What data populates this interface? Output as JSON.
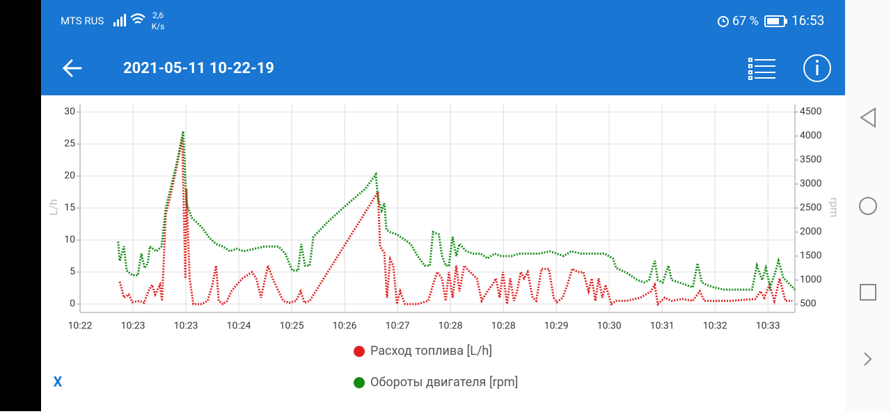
{
  "status_bar": {
    "carrier": "MTS RUS",
    "speed": "2,6",
    "speed_unit": "K/s",
    "battery": "67 %",
    "time": "16:53"
  },
  "header": {
    "title": "2021-05-11 10-22-19"
  },
  "close_label": "X",
  "chart_data": {
    "type": "line",
    "y_label": "L/h",
    "y2_label": "rpm",
    "xlim": [
      0,
      13.51
    ],
    "xticks": [
      {
        "value": 0,
        "label": "10:22"
      },
      {
        "value": 1,
        "label": "10:23"
      },
      {
        "value": 2,
        "label": "10:23"
      },
      {
        "value": 3,
        "label": "10:24"
      },
      {
        "value": 4,
        "label": "10:25"
      },
      {
        "value": 5,
        "label": "10:26"
      },
      {
        "value": 6,
        "label": "10:27"
      },
      {
        "value": 7,
        "label": "10:28"
      },
      {
        "value": 8,
        "label": "10:28"
      },
      {
        "value": 9,
        "label": "10:29"
      },
      {
        "value": 10,
        "label": "10:30"
      },
      {
        "value": 11,
        "label": "10:31"
      },
      {
        "value": 12,
        "label": "10:32"
      },
      {
        "value": 13,
        "label": "10:33"
      }
    ],
    "ylim": [
      -1.3,
      31.2
    ],
    "yticks": [
      0,
      5,
      10,
      15,
      20,
      25,
      30
    ],
    "y2lim": [
      326,
      4659
    ],
    "y2ticks": [
      500,
      1000,
      1500,
      2000,
      2500,
      3000,
      3500,
      4000,
      4500
    ],
    "grid": true,
    "legend": "bottom",
    "series": [
      {
        "name": "Расход топлива [L/h]",
        "color": "#e01f1f",
        "x": [
          0.75,
          0.83,
          0.92,
          0.99,
          1.12,
          1.21,
          1.29,
          1.36,
          1.42,
          1.51,
          1.55,
          1.62,
          1.71,
          1.84,
          1.93,
          1.99,
          2.01,
          2.07,
          2.14,
          2.3,
          2.41,
          2.5,
          2.57,
          2.62,
          2.7,
          2.78,
          2.86,
          2.96,
          3.07,
          3.16,
          3.25,
          3.33,
          3.42,
          3.55,
          3.64,
          3.75,
          3.84,
          3.95,
          4.08,
          4.17,
          4.24,
          4.34,
          5.63,
          5.67,
          5.75,
          5.8,
          5.86,
          5.92,
          5.99,
          6.05,
          6.14,
          6.38,
          6.58,
          6.67,
          6.75,
          6.84,
          6.91,
          6.97,
          7.04,
          7.11,
          7.17,
          7.26,
          7.37,
          7.5,
          7.59,
          7.7,
          7.79,
          7.86,
          7.93,
          7.99,
          8.07,
          8.13,
          8.2,
          8.26,
          8.33,
          8.39,
          8.46,
          8.55,
          8.62,
          8.72,
          8.86,
          8.95,
          9.01,
          9.12,
          9.21,
          9.3,
          9.41,
          9.51,
          9.61,
          9.67,
          9.74,
          9.8,
          9.87,
          9.93,
          10.04,
          10.13,
          10.33,
          10.59,
          10.79,
          10.86,
          10.92,
          11.05,
          11.18,
          11.38,
          11.58,
          11.71,
          11.8,
          12.04,
          12.3,
          12.76,
          12.86,
          12.93,
          13.03,
          13.12,
          13.22,
          13.33,
          13.46
        ],
        "values": [
          3.5,
          1,
          1.5,
          0.3,
          0.5,
          0.2,
          2,
          3,
          1.5,
          3,
          0.5,
          14,
          17,
          22,
          26,
          4,
          18,
          4,
          0,
          0,
          0.5,
          3,
          6,
          0.5,
          0,
          0.5,
          2,
          3,
          4,
          4.5,
          5,
          4,
          1,
          6,
          4,
          2,
          0.5,
          0.2,
          0.5,
          2,
          0.2,
          0.5,
          17.5,
          9,
          8,
          1,
          7,
          6,
          0,
          2,
          0,
          0,
          0.5,
          3,
          5,
          4,
          0.5,
          5,
          1,
          6,
          2,
          6,
          5,
          4,
          0.5,
          2,
          3,
          4,
          1,
          5,
          0,
          4,
          0.5,
          2,
          5,
          4,
          5,
          1,
          0.5,
          5.5,
          5.5,
          1,
          0.3,
          1,
          3,
          5.5,
          5,
          5,
          2,
          4,
          0.5,
          4,
          1,
          3,
          0,
          0.5,
          0.5,
          1,
          2,
          3,
          0,
          1,
          0.5,
          0.8,
          0.5,
          2,
          0.5,
          0.5,
          0.5,
          0.8,
          2,
          1,
          3,
          0.5,
          4,
          0.5,
          0.5
        ]
      },
      {
        "name": "Обороты двигателя [rpm]",
        "color": "#138a13",
        "axis": "y2",
        "x": [
          0.72,
          0.75,
          0.83,
          0.88,
          0.99,
          1.09,
          1.16,
          1.22,
          1.28,
          1.32,
          1.38,
          1.45,
          1.54,
          1.62,
          1.71,
          1.84,
          1.95,
          2.01,
          2.11,
          2.3,
          2.43,
          2.57,
          2.7,
          2.83,
          2.96,
          3.09,
          3.29,
          3.49,
          3.75,
          3.88,
          4.01,
          4.12,
          4.18,
          4.25,
          4.34,
          4.41,
          4.67,
          5.07,
          5.39,
          5.59,
          5.63,
          5.7,
          5.75,
          5.79,
          5.86,
          5.99,
          6.12,
          6.25,
          6.38,
          6.51,
          6.61,
          6.67,
          6.78,
          6.84,
          6.91,
          6.97,
          7.04,
          7.11,
          7.17,
          7.3,
          7.43,
          7.57,
          7.7,
          7.83,
          7.96,
          8.16,
          8.29,
          8.49,
          8.68,
          8.88,
          9.01,
          9.14,
          9.28,
          9.47,
          9.67,
          9.91,
          10.07,
          10.13,
          10.33,
          10.53,
          10.66,
          10.75,
          10.86,
          10.92,
          11.01,
          11.12,
          11.18,
          11.32,
          11.45,
          11.58,
          11.67,
          11.75,
          11.84,
          11.97,
          12.17,
          12.7,
          12.79,
          12.89,
          12.96,
          13.04,
          13.12,
          13.2,
          13.29,
          13.42,
          13.51
        ],
        "values": [
          1800,
          1400,
          1700,
          1200,
          1100,
          1100,
          1550,
          1250,
          1350,
          1700,
          1650,
          1600,
          1700,
          2500,
          2900,
          3500,
          4100,
          2600,
          2300,
          2100,
          1900,
          1750,
          1700,
          1600,
          1650,
          1600,
          1650,
          1700,
          1700,
          1550,
          1200,
          1200,
          1750,
          1300,
          1300,
          1900,
          2200,
          2600,
          2900,
          3200,
          2700,
          2450,
          2600,
          2050,
          2000,
          1950,
          1850,
          1750,
          1500,
          1300,
          1300,
          2000,
          1950,
          1500,
          1300,
          1300,
          1900,
          1500,
          1750,
          1600,
          1550,
          1550,
          1450,
          1550,
          1500,
          1500,
          1550,
          1550,
          1550,
          1600,
          1550,
          1500,
          1600,
          1550,
          1550,
          1550,
          1450,
          1250,
          1150,
          1000,
          950,
          1000,
          1400,
          1000,
          950,
          1300,
          1000,
          950,
          900,
          850,
          1350,
          950,
          900,
          850,
          800,
          800,
          1300,
          1000,
          1250,
          850,
          1100,
          1400,
          1050,
          900,
          800
        ]
      }
    ]
  }
}
